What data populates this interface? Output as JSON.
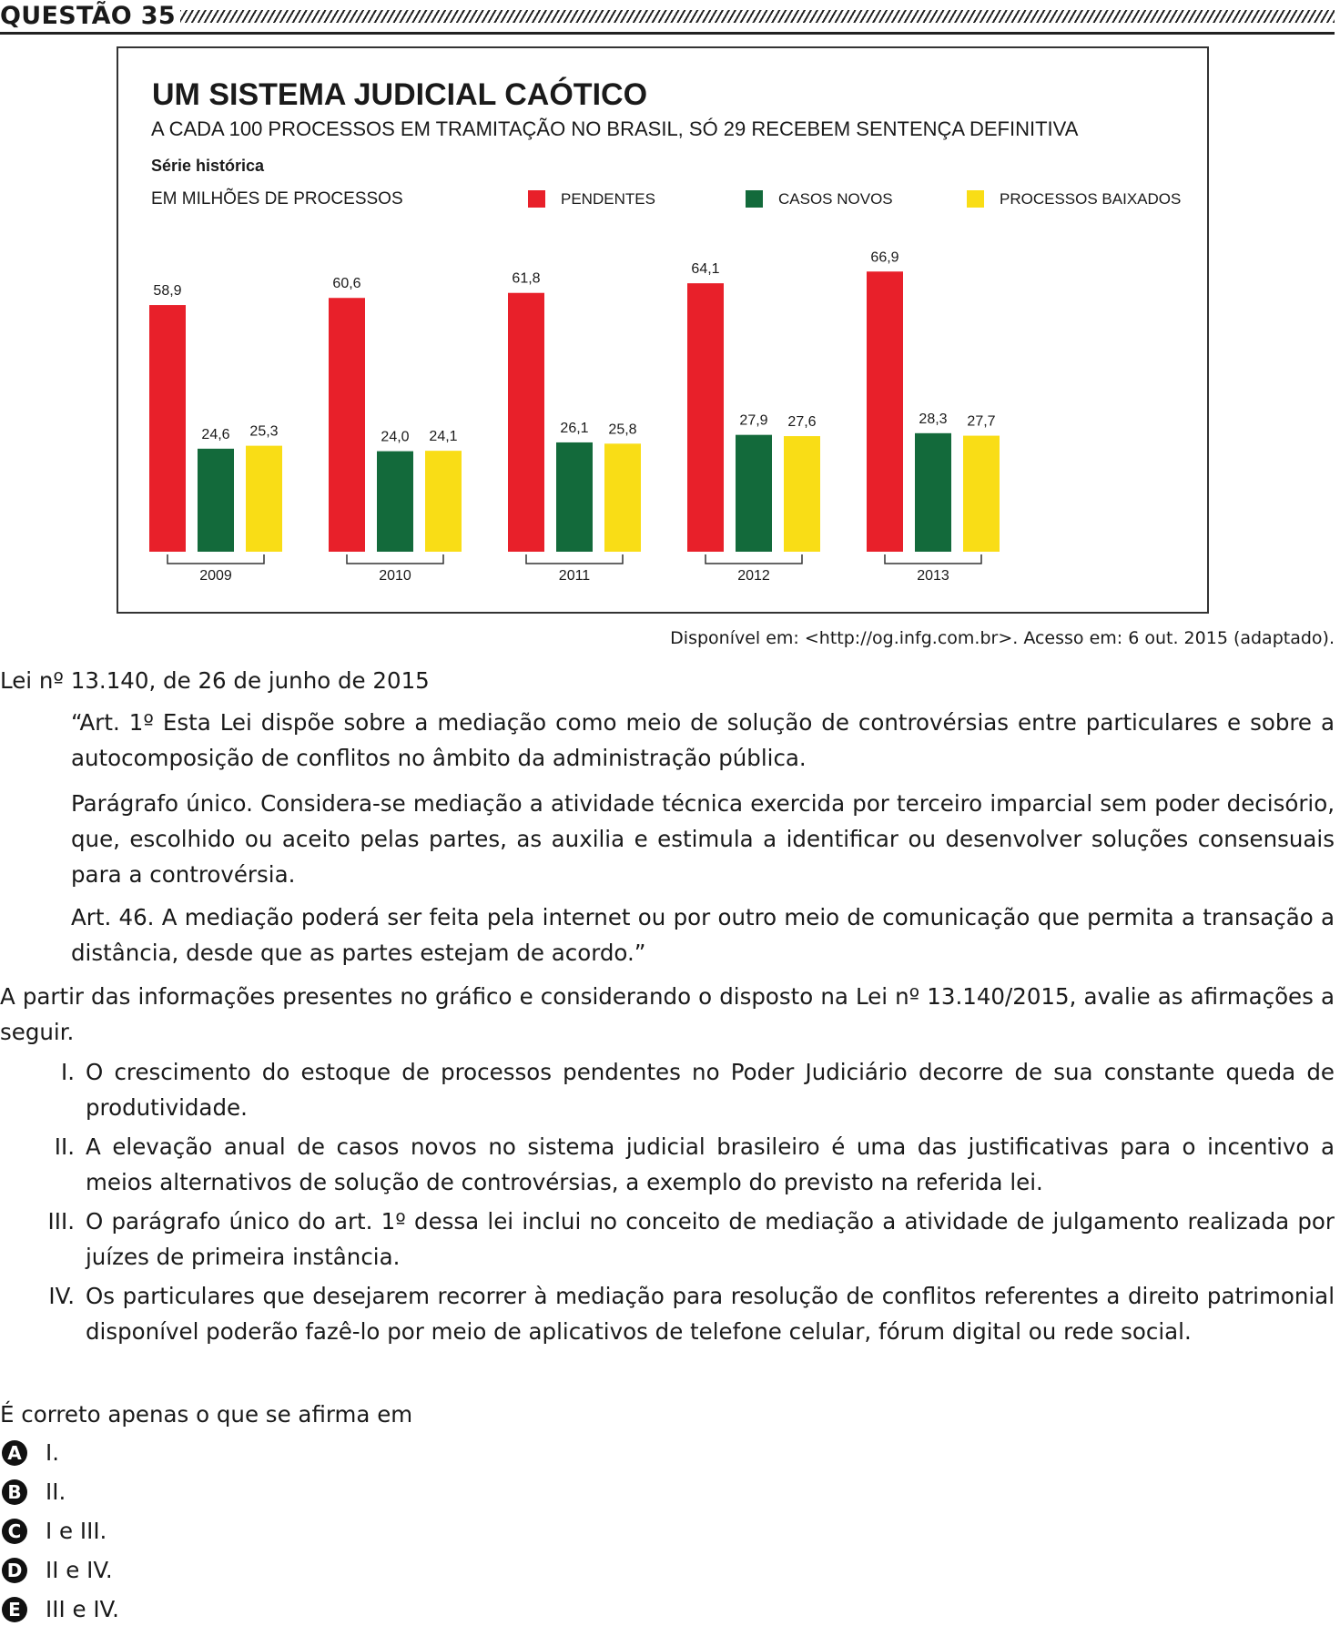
{
  "header": {
    "title": "QUESTÃO 35"
  },
  "chart_data": {
    "type": "bar",
    "title": "UM SISTEMA JUDICIAL CAÓTICO",
    "subtitle": "A CADA 100 PROCESSOS EM TRAMITAÇÃO NO BRASIL, SÓ 29 RECEBEM SENTENÇA DEFINITIVA",
    "series_label": "Série histórica",
    "unit_label": "EM MILHÕES DE PROCESSOS",
    "categories": [
      "2009",
      "2010",
      "2011",
      "2012",
      "2013"
    ],
    "series": [
      {
        "name": "PENDENTES",
        "color": "#e8202a",
        "values": [
          58.9,
          60.6,
          61.8,
          64.1,
          66.9
        ],
        "labels": [
          "58,9",
          "60,6",
          "61,8",
          "64,1",
          "66,9"
        ]
      },
      {
        "name": "CASOS NOVOS",
        "color": "#136a3b",
        "values": [
          24.6,
          24.0,
          26.1,
          27.9,
          28.3
        ],
        "labels": [
          "24,6",
          "24,0",
          "26,1",
          "27,9",
          "28,3"
        ]
      },
      {
        "name": "PROCESSOS BAIXADOS",
        "color": "#f9dd16",
        "values": [
          25.3,
          24.1,
          25.8,
          27.6,
          27.7
        ],
        "labels": [
          "25,3",
          "24,1",
          "25,8",
          "27,6",
          "27,7"
        ]
      }
    ],
    "legend": "top-right",
    "grid": false,
    "ylim": [
      0,
      70
    ]
  },
  "source": "Disponível em: <http://og.infg.com.br>. Acesso em: 6 out. 2015 (adaptado).",
  "law": {
    "title": "Lei nº 13.140, de 26 de junho de 2015",
    "paragraphs": [
      "“Art. 1º Esta Lei dispõe sobre a mediação como meio de solução de controvérsias entre particulares e sobre a autocomposição de conflitos no âmbito da administração pública.",
      "Parágrafo único. Considera-se mediação a atividade técnica exercida por terceiro imparcial sem poder decisório, que, escolhido ou aceito pelas partes, as auxilia e estimula a identificar ou desenvolver soluções consensuais para a controvérsia.",
      "Art. 46. A mediação poderá ser feita pela internet ou por outro meio de comunicação que permita a transação a distância, desde que as partes estejam de acordo.”"
    ]
  },
  "intro": "A partir das informações presentes no gráfico e considerando o disposto na Lei nº 13.140/2015, avalie as afirmações a seguir.",
  "statements": [
    {
      "num": "I.",
      "text": "O crescimento do estoque de processos pendentes no Poder Judiciário decorre de sua constante queda de produtividade."
    },
    {
      "num": "II.",
      "text": "A elevação anual de casos novos no sistema judicial brasileiro é uma das justificativas para o incentivo a meios alternativos de solução de controvérsias, a exemplo do previsto na referida lei."
    },
    {
      "num": "III.",
      "text": "O parágrafo único do art. 1º dessa lei inclui no conceito de mediação a atividade de julgamento realizada por juízes de primeira instância."
    },
    {
      "num": "IV.",
      "text": "Os particulares que desejarem recorrer à mediação para resolução de conflitos referentes a direito patrimonial disponível poderão fazê-lo por meio de aplicativos de telefone celular, fórum digital ou rede social."
    }
  ],
  "prompt": "É correto apenas o que se afirma em",
  "options": [
    {
      "letter": "A",
      "text": "I."
    },
    {
      "letter": "B",
      "text": "II."
    },
    {
      "letter": "C",
      "text": "I e III."
    },
    {
      "letter": "D",
      "text": "II e IV."
    },
    {
      "letter": "E",
      "text": "III e IV."
    }
  ]
}
